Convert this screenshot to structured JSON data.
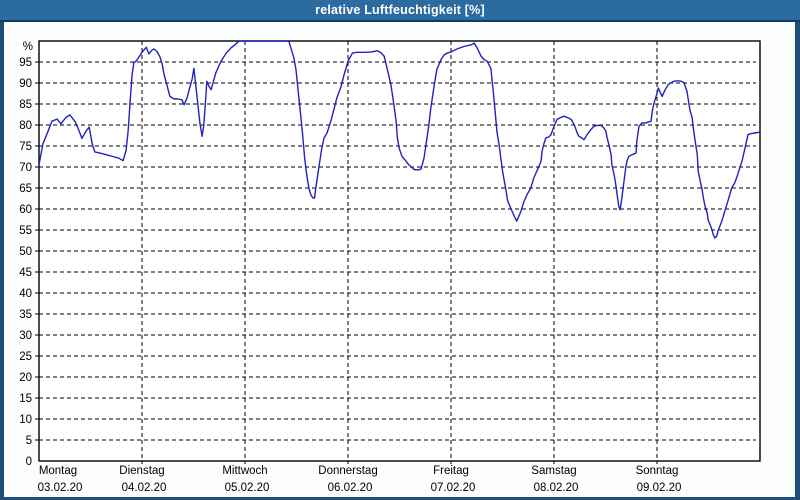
{
  "window": {
    "title": "relative Luftfeuchtigkeit [%]"
  },
  "colors": {
    "frame": "#1d4f79",
    "titlebar_bg": "#2b6b9f",
    "titlebar_text": "#ffffff",
    "plot_bg": "#ffffff",
    "grid": "#000000",
    "axis": "#000000",
    "line": "#2222bb",
    "label": "#000000"
  },
  "chart_data": {
    "type": "line",
    "title": "relative Luftfeuchtigkeit [%]",
    "xlabel": "",
    "ylabel": "%",
    "ylim": [
      0,
      100
    ],
    "x_range_hours": [
      0,
      168
    ],
    "grid": "dashed",
    "legend": "none",
    "y_ticks": [
      0,
      5,
      10,
      15,
      20,
      25,
      30,
      35,
      40,
      45,
      50,
      55,
      60,
      65,
      70,
      75,
      80,
      85,
      90,
      95
    ],
    "days": [
      {
        "name": "Montag",
        "date": "03.02.20"
      },
      {
        "name": "Dienstag",
        "date": "04.02.20"
      },
      {
        "name": "Mittwoch",
        "date": "05.02.20"
      },
      {
        "name": "Donnerstag",
        "date": "06.02.20"
      },
      {
        "name": "Freitag",
        "date": "07.02.20"
      },
      {
        "name": "Samstag",
        "date": "08.02.20"
      },
      {
        "name": "Sonntag",
        "date": "09.02.20"
      }
    ],
    "series": [
      {
        "name": "relative Luftfeuchtigkeit",
        "unit": "%",
        "color": "#2222bb",
        "points": [
          [
            0,
            70.5
          ],
          [
            0.9,
            75.5
          ],
          [
            2.1,
            78.5
          ],
          [
            3,
            80.9
          ],
          [
            4.2,
            81.4
          ],
          [
            5.1,
            80.3
          ],
          [
            6.3,
            81.8
          ],
          [
            7.2,
            82.4
          ],
          [
            8.4,
            80.8
          ],
          [
            9.1,
            79.2
          ],
          [
            10,
            76.8
          ],
          [
            11,
            78.6
          ],
          [
            11.7,
            79.5
          ],
          [
            12.4,
            75.5
          ],
          [
            13,
            73.6
          ],
          [
            14.2,
            73.3
          ],
          [
            15.8,
            72.9
          ],
          [
            17.2,
            72.5
          ],
          [
            18.6,
            72.1
          ],
          [
            19.6,
            71.5
          ],
          [
            20.3,
            74
          ],
          [
            20.8,
            79
          ],
          [
            21.2,
            85.2
          ],
          [
            21.7,
            92
          ],
          [
            22.1,
            94.8
          ],
          [
            22.6,
            95.2
          ],
          [
            23.3,
            96.2
          ],
          [
            24,
            97.3
          ],
          [
            25,
            98.5
          ],
          [
            25.6,
            96.9
          ],
          [
            26.3,
            97.8
          ],
          [
            26.8,
            98.1
          ],
          [
            27.5,
            97.5
          ],
          [
            28.2,
            96.2
          ],
          [
            28.7,
            94.5
          ],
          [
            29.1,
            92.2
          ],
          [
            29.8,
            89.5
          ],
          [
            30.5,
            86.8
          ],
          [
            31.5,
            86.2
          ],
          [
            32.4,
            86.2
          ],
          [
            33.3,
            86
          ],
          [
            33.8,
            84.8
          ],
          [
            34.5,
            86.5
          ],
          [
            35,
            88.4
          ],
          [
            35.7,
            91
          ],
          [
            36.1,
            93.5
          ],
          [
            36.8,
            87
          ],
          [
            37.5,
            80.5
          ],
          [
            38,
            77.3
          ],
          [
            38.4,
            80
          ],
          [
            38.9,
            87
          ],
          [
            39.1,
            90.4
          ],
          [
            39.6,
            89.2
          ],
          [
            40.1,
            88.4
          ],
          [
            41.2,
            92.4
          ],
          [
            42.4,
            95.2
          ],
          [
            43.6,
            97.1
          ],
          [
            44.7,
            98.3
          ],
          [
            45.9,
            99.3
          ],
          [
            46.6,
            100
          ],
          [
            48,
            100
          ],
          [
            58.2,
            100
          ],
          [
            58.7,
            98.3
          ],
          [
            59.4,
            96
          ],
          [
            59.9,
            93
          ],
          [
            60.4,
            88
          ],
          [
            60.9,
            83
          ],
          [
            61.4,
            78
          ],
          [
            61.9,
            72
          ],
          [
            62.4,
            68
          ],
          [
            62.9,
            65
          ],
          [
            63.4,
            63.2
          ],
          [
            63.9,
            62.6
          ],
          [
            64.2,
            62.6
          ],
          [
            64.5,
            65
          ],
          [
            65.2,
            69.8
          ],
          [
            65.9,
            74.5
          ],
          [
            66.4,
            76.9
          ],
          [
            67.1,
            78.1
          ],
          [
            68,
            80.9
          ],
          [
            68.7,
            83.6
          ],
          [
            69.4,
            86.4
          ],
          [
            70.4,
            89.2
          ],
          [
            71.1,
            92
          ],
          [
            71.8,
            94.4
          ],
          [
            72,
            95.2
          ],
          [
            72.5,
            96.1
          ],
          [
            73,
            97.1
          ],
          [
            73.9,
            97.3
          ],
          [
            76,
            97.3
          ],
          [
            77.6,
            97.4
          ],
          [
            78.8,
            97.7
          ],
          [
            79.7,
            97.2
          ],
          [
            80.4,
            96.4
          ],
          [
            81.1,
            93.5
          ],
          [
            82,
            89.6
          ],
          [
            82.7,
            84.8
          ],
          [
            83.2,
            80.9
          ],
          [
            83.5,
            76.9
          ],
          [
            83.9,
            74.5
          ],
          [
            84.6,
            72.5
          ],
          [
            85.5,
            71.4
          ],
          [
            86.2,
            70.5
          ],
          [
            87.4,
            69.4
          ],
          [
            88.3,
            69.3
          ],
          [
            89,
            69.5
          ],
          [
            89.7,
            72.1
          ],
          [
            90.4,
            76.9
          ],
          [
            90.9,
            80.5
          ],
          [
            91.3,
            84
          ],
          [
            92,
            88.8
          ],
          [
            92.7,
            93.2
          ],
          [
            93.7,
            95.6
          ],
          [
            94.4,
            96.7
          ],
          [
            95.3,
            97.2
          ],
          [
            96,
            97.4
          ],
          [
            97.4,
            98.1
          ],
          [
            99,
            98.7
          ],
          [
            100.7,
            99.1
          ],
          [
            101.4,
            99.5
          ],
          [
            102.1,
            98.3
          ],
          [
            103,
            96.4
          ],
          [
            103.7,
            95.6
          ],
          [
            104.4,
            95.2
          ],
          [
            105.3,
            93.5
          ],
          [
            106,
            86.4
          ],
          [
            106.7,
            78.5
          ],
          [
            107.2,
            75.3
          ],
          [
            107.6,
            72.1
          ],
          [
            108.1,
            68.5
          ],
          [
            108.8,
            64.6
          ],
          [
            109.2,
            62
          ],
          [
            109.9,
            60.2
          ],
          [
            110.6,
            58.6
          ],
          [
            111.3,
            57.1
          ],
          [
            112.3,
            59.5
          ],
          [
            113,
            61.8
          ],
          [
            113.7,
            63.4
          ],
          [
            114.6,
            65
          ],
          [
            115.3,
            67.4
          ],
          [
            116,
            69
          ],
          [
            117,
            71.4
          ],
          [
            117.2,
            73.7
          ],
          [
            117.7,
            75.7
          ],
          [
            118.1,
            76.9
          ],
          [
            118.8,
            77.2
          ],
          [
            119.3,
            77.7
          ],
          [
            120,
            79.7
          ],
          [
            120.7,
            81.3
          ],
          [
            121.6,
            81.8
          ],
          [
            122.3,
            82.1
          ],
          [
            123.3,
            81.7
          ],
          [
            124,
            81.3
          ],
          [
            124.7,
            80.1
          ],
          [
            125.4,
            78.1
          ],
          [
            125.8,
            77.3
          ],
          [
            126.5,
            76.9
          ],
          [
            127,
            76.5
          ],
          [
            127.7,
            77.7
          ],
          [
            128.6,
            78.9
          ],
          [
            129.3,
            79.7
          ],
          [
            130,
            79.9
          ],
          [
            131,
            79.9
          ],
          [
            131.6,
            79.3
          ],
          [
            132.1,
            78.5
          ],
          [
            132.3,
            77.3
          ],
          [
            132.8,
            75.3
          ],
          [
            133.3,
            72.9
          ],
          [
            133.5,
            70.5
          ],
          [
            134,
            68.2
          ],
          [
            134.4,
            65.8
          ],
          [
            134.7,
            63.4
          ],
          [
            135.1,
            60.6
          ],
          [
            135.4,
            59.8
          ],
          [
            135.8,
            62.5
          ],
          [
            136.3,
            66.6
          ],
          [
            136.7,
            69.8
          ],
          [
            137,
            71.4
          ],
          [
            137.4,
            72.5
          ],
          [
            138.1,
            72.9
          ],
          [
            139.1,
            73.3
          ],
          [
            139.3,
            76.1
          ],
          [
            139.8,
            79.7
          ],
          [
            140.5,
            80.5
          ],
          [
            141.4,
            80.5
          ],
          [
            142.6,
            80.9
          ],
          [
            142.9,
            83.3
          ],
          [
            143.3,
            85.2
          ],
          [
            144,
            87.5
          ],
          [
            144.3,
            88.8
          ],
          [
            145.2,
            86.8
          ],
          [
            145.9,
            88.4
          ],
          [
            146.6,
            89.6
          ],
          [
            147.5,
            90.2
          ],
          [
            148.2,
            90.5
          ],
          [
            149.4,
            90.5
          ],
          [
            150.3,
            90.1
          ],
          [
            151,
            88
          ],
          [
            151.3,
            86
          ],
          [
            151.7,
            83.5
          ],
          [
            152.2,
            81.7
          ],
          [
            152.4,
            79.7
          ],
          [
            152.9,
            76.1
          ],
          [
            153.4,
            72.9
          ],
          [
            153.6,
            69
          ],
          [
            154.1,
            66.6
          ],
          [
            154.5,
            64.6
          ],
          [
            154.8,
            62.6
          ],
          [
            155.2,
            60.6
          ],
          [
            155.7,
            59
          ],
          [
            155.9,
            57.4
          ],
          [
            156.4,
            56.2
          ],
          [
            156.8,
            55.1
          ],
          [
            157.1,
            53.9
          ],
          [
            157.5,
            53.1
          ],
          [
            157.9,
            53.5
          ],
          [
            158.2,
            54.7
          ],
          [
            159.1,
            57.1
          ],
          [
            159.8,
            59.5
          ],
          [
            160.5,
            61.8
          ],
          [
            161.4,
            65
          ],
          [
            162.1,
            66.2
          ],
          [
            162.8,
            68.2
          ],
          [
            163.8,
            71.4
          ],
          [
            164.5,
            74.5
          ],
          [
            165.2,
            77.7
          ],
          [
            165.7,
            77.9
          ],
          [
            166.8,
            78.1
          ],
          [
            168,
            78.3
          ]
        ]
      }
    ]
  }
}
